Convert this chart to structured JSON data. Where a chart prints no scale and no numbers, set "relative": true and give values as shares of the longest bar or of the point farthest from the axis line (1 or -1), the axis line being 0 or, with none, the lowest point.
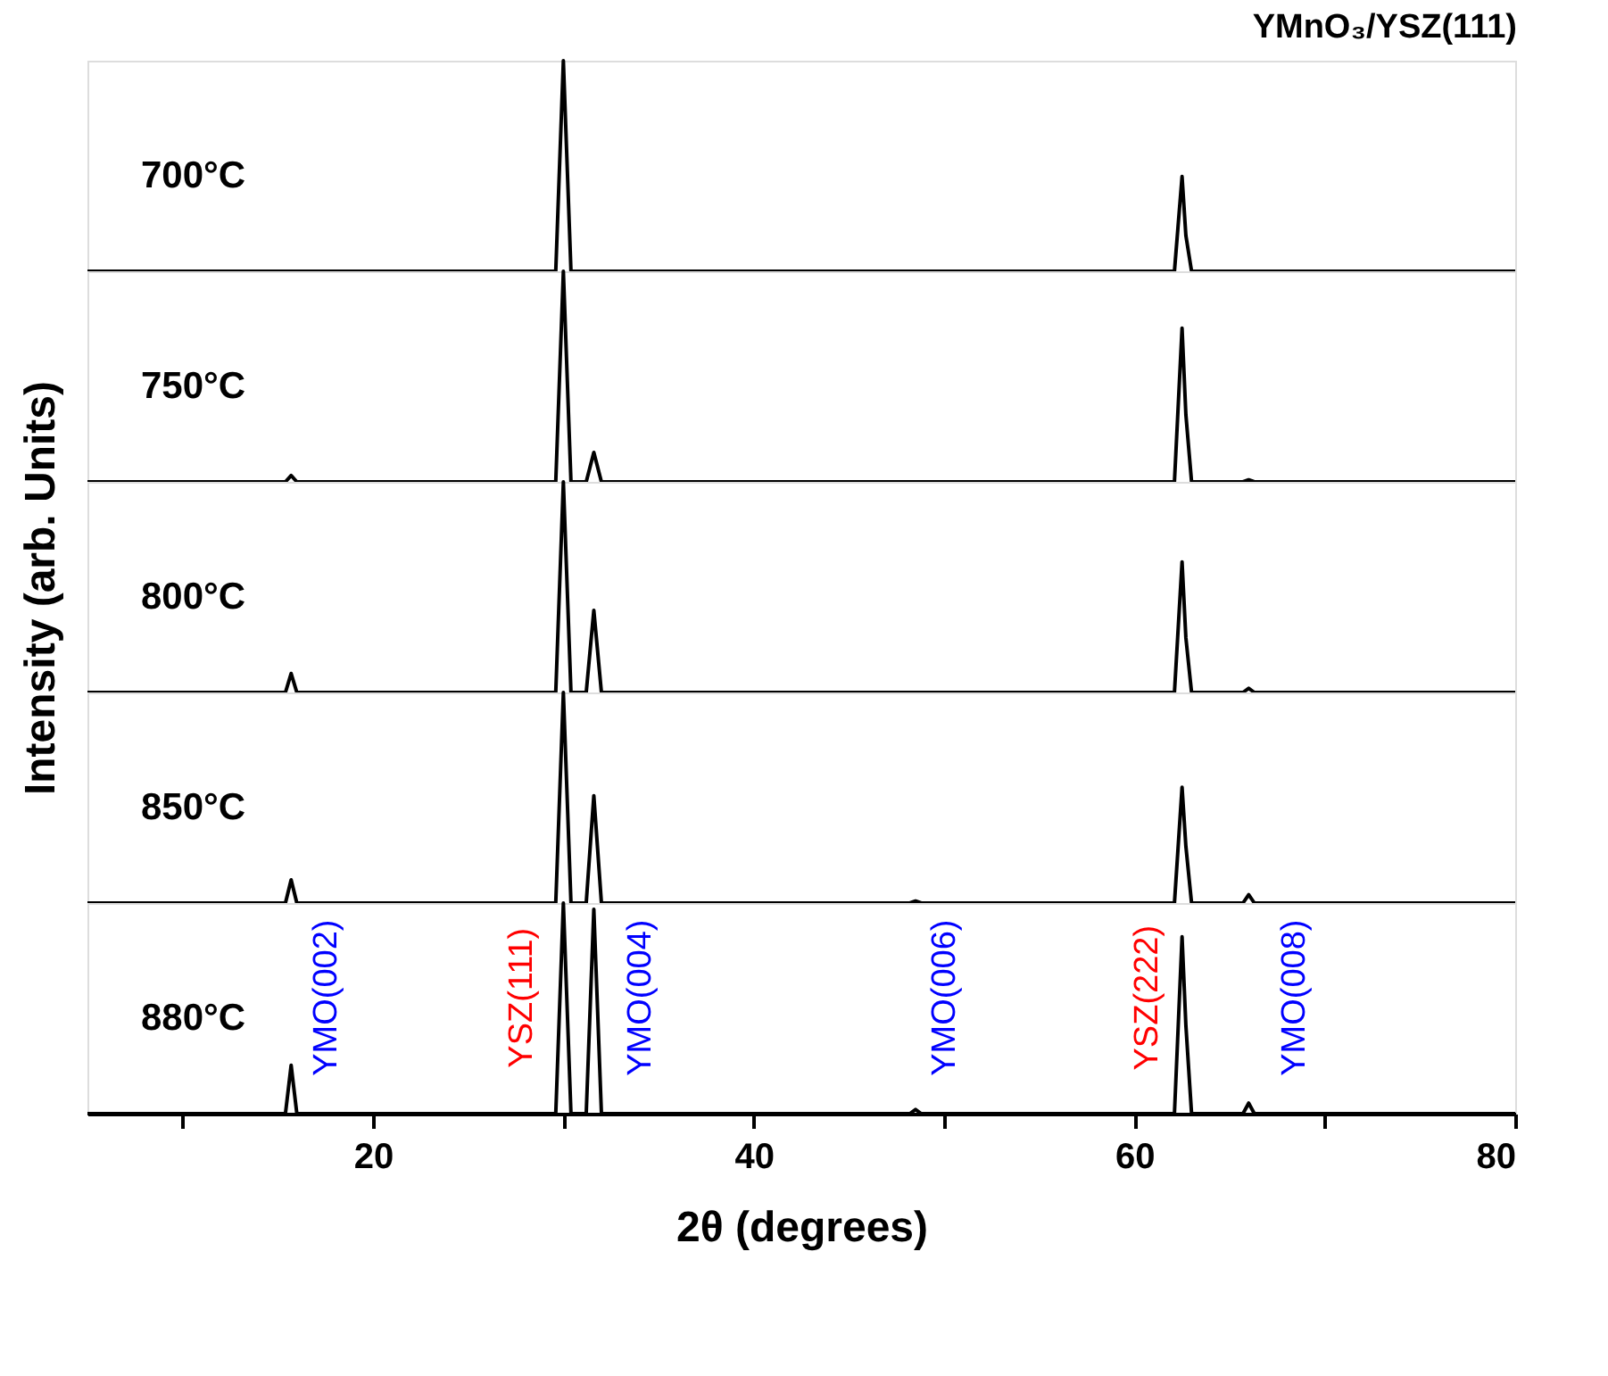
{
  "chart_data": [
    {
      "type": "line",
      "relative": true,
      "title": "YMnO₃/YSZ(111)",
      "xlim": [
        5,
        80
      ],
      "tick_labels": false,
      "legend": false,
      "grid": false,
      "series": [
        {
          "name": "700°C",
          "color": "#000000",
          "x": [
            5,
            15.4,
            15.7,
            16.0,
            29.6,
            30.0,
            30.4,
            31.2,
            31.6,
            32.0,
            62.1,
            62.5,
            62.7,
            63.0,
            80
          ],
          "values": [
            0,
            0,
            0,
            0,
            0,
            1,
            0,
            0,
            0,
            0,
            0,
            0.45,
            0.17,
            0,
            0
          ]
        }
      ]
    },
    {
      "type": "line",
      "relative": true,
      "xlim": [
        5,
        80
      ],
      "tick_labels": false,
      "legend": false,
      "grid": false,
      "series": [
        {
          "name": "750°C",
          "color": "#000000",
          "x": [
            5,
            15.4,
            15.7,
            16.0,
            29.6,
            30.0,
            30.4,
            31.2,
            31.6,
            32.0,
            62.1,
            62.5,
            62.7,
            63.0,
            65.7,
            66.0,
            66.3,
            80
          ],
          "values": [
            0,
            0,
            0.03,
            0,
            0,
            1,
            0,
            0,
            0.14,
            0,
            0,
            0.73,
            0.32,
            0,
            0,
            0.01,
            0,
            0
          ]
        }
      ]
    },
    {
      "type": "line",
      "relative": true,
      "ylabel": "Intensity (arb. Units)",
      "xlim": [
        5,
        80
      ],
      "tick_labels": false,
      "legend": false,
      "grid": false,
      "series": [
        {
          "name": "800°C",
          "color": "#000000",
          "x": [
            5,
            15.4,
            15.7,
            16.0,
            29.6,
            30.0,
            30.4,
            31.2,
            31.6,
            32.0,
            62.1,
            62.5,
            62.7,
            63.0,
            65.7,
            66.0,
            66.3,
            80
          ],
          "values": [
            0,
            0,
            0.09,
            0,
            0,
            1,
            0,
            0,
            0.39,
            0,
            0,
            0.62,
            0.26,
            0,
            0,
            0.02,
            0,
            0
          ]
        }
      ]
    },
    {
      "type": "line",
      "relative": true,
      "xlim": [
        5,
        80
      ],
      "tick_labels": false,
      "legend": false,
      "grid": false,
      "series": [
        {
          "name": "850°C",
          "color": "#000000",
          "x": [
            5,
            15.4,
            15.7,
            16.0,
            29.6,
            30.0,
            30.4,
            31.2,
            31.6,
            32.0,
            48.2,
            48.5,
            48.8,
            62.1,
            62.5,
            62.7,
            63.0,
            65.7,
            66.0,
            66.3,
            80
          ],
          "values": [
            0,
            0,
            0.11,
            0,
            0,
            1,
            0,
            0,
            0.51,
            0,
            0,
            0.01,
            0,
            0,
            0.55,
            0.27,
            0,
            0,
            0.04,
            0,
            0
          ]
        }
      ]
    },
    {
      "type": "line",
      "relative": true,
      "xlabel": "2θ (degrees)",
      "xlim": [
        5,
        80
      ],
      "xticks": [
        {
          "value": 10,
          "label": null
        },
        20,
        {
          "value": 30,
          "label": null
        },
        40,
        {
          "value": 50,
          "label": null
        },
        60,
        {
          "value": 70,
          "label": null
        },
        80
      ],
      "tick_labels": "x",
      "legend": false,
      "grid": false,
      "annotations": [
        "YMO(002)",
        "YSZ(111)",
        "YMO(004)",
        "YMO(006)",
        "YSZ(222)",
        "YMO(008)"
      ],
      "series": [
        {
          "name": "880°C",
          "color": "#000000",
          "x": [
            5,
            15.4,
            15.7,
            16.0,
            29.6,
            30.0,
            30.4,
            31.2,
            31.6,
            32.0,
            48.2,
            48.5,
            48.8,
            62.1,
            62.5,
            62.7,
            63.0,
            65.7,
            66.0,
            66.3,
            80
          ],
          "values": [
            0,
            0,
            0.23,
            0,
            0,
            1,
            0,
            0,
            0.97,
            0,
            0,
            0.02,
            0,
            0,
            0.84,
            0.42,
            0,
            0,
            0.05,
            0,
            0
          ]
        }
      ]
    }
  ]
}
